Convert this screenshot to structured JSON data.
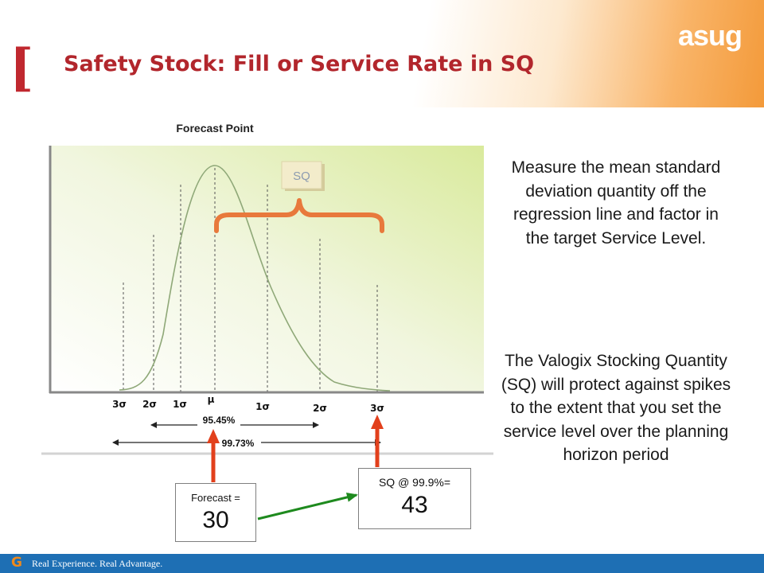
{
  "header": {
    "logo_text": "asug",
    "bracket": "[",
    "title": "Safety Stock:  Fill or Service Rate in SQ"
  },
  "diagram": {
    "heading": "Forecast Point",
    "sq_tag": "SQ",
    "axis_labels": [
      "3σ",
      "2σ",
      "1σ",
      "μ",
      "1σ",
      "2σ",
      "3σ"
    ],
    "pct_95": "95.45%",
    "pct_99": "99.73%"
  },
  "boxes": {
    "forecast_label": "Forecast =",
    "forecast_value": "30",
    "sq_label": "SQ @ 99.9%=",
    "sq_value": "43"
  },
  "text": {
    "para1": "Measure the mean standard deviation quantity off the regression line and factor in the target Service Level.",
    "para2": "The Valogix Stocking Quantity (SQ) will protect against spikes to the extent that you set the service level over the planning horizon period"
  },
  "footer": {
    "g": "G",
    "tagline": "Real Experience. Real Advantage."
  },
  "colors": {
    "title": "#b2262c",
    "accent_orange": "#f39a3a",
    "footer_blue": "#1e6fb4",
    "arrow_red": "#e2401c",
    "arrow_green": "#1e8a1e"
  }
}
